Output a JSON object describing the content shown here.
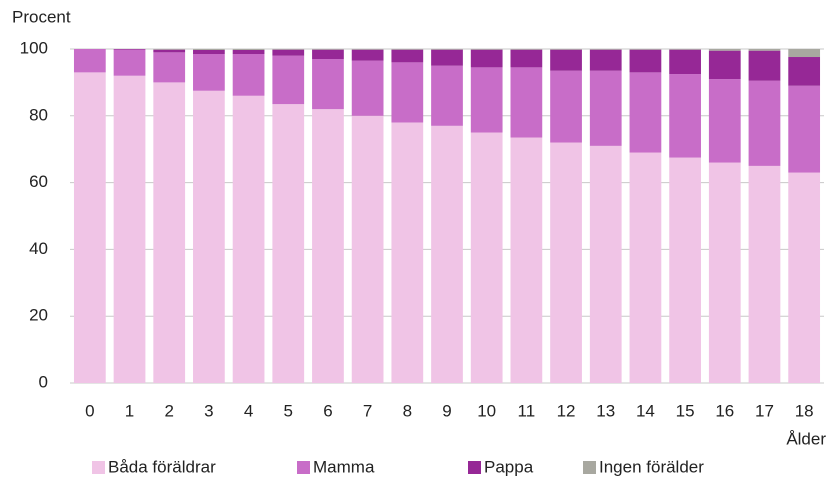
{
  "chart_data": {
    "type": "stacked_bar",
    "y_label": "Procent",
    "x_label": "Ålder",
    "categories": [
      "0",
      "1",
      "2",
      "3",
      "4",
      "5",
      "6",
      "7",
      "8",
      "9",
      "10",
      "11",
      "12",
      "13",
      "14",
      "15",
      "16",
      "17",
      "18"
    ],
    "series": [
      {
        "name": "Båda föräldrar",
        "color": "#f0c4e6",
        "values": [
          93,
          92,
          90,
          87.5,
          86,
          83.5,
          82,
          80,
          78,
          77,
          75,
          73.5,
          72,
          71,
          69,
          67.5,
          66,
          65,
          63
        ]
      },
      {
        "name": "Mamma",
        "color": "#c86dc8",
        "values": [
          7,
          7.8,
          9,
          11,
          12.5,
          14.5,
          15,
          16.5,
          18,
          18,
          19.5,
          21,
          21.5,
          22.5,
          24,
          25,
          25,
          25.5,
          26
        ]
      },
      {
        "name": "Pappa",
        "color": "#962896",
        "values": [
          0,
          0.2,
          0.8,
          1.2,
          1.2,
          1.8,
          2.8,
          3.3,
          3.8,
          4.8,
          5.3,
          5.3,
          6.3,
          6.3,
          6.8,
          7.3,
          8.5,
          9,
          8.6
        ]
      },
      {
        "name": "Ingen förälder",
        "color": "#a8a8a0",
        "values": [
          0,
          0,
          0.2,
          0.3,
          0.3,
          0.2,
          0.2,
          0.2,
          0.2,
          0.2,
          0.2,
          0.2,
          0.2,
          0.2,
          0.2,
          0.2,
          0.5,
          0.5,
          2.4
        ]
      }
    ],
    "ylim": [
      0,
      100
    ],
    "yticks": [
      0,
      20,
      40,
      60,
      80,
      100
    ],
    "grid": true
  }
}
